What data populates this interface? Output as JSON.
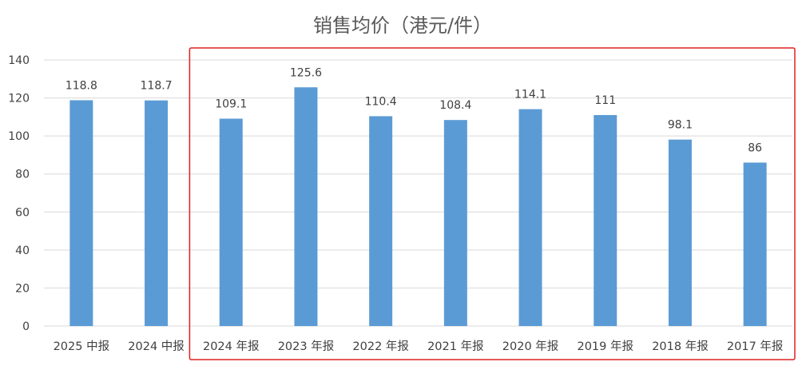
{
  "chart_data": {
    "type": "bar",
    "title": "销售均价（港元/件）",
    "categories": [
      "2025 中报",
      "2024 中报",
      "2024 年报",
      "2023 年报",
      "2022 年报",
      "2021 年报",
      "2020 年报",
      "2019 年报",
      "2018 年报",
      "2017 年报"
    ],
    "values": [
      118.8,
      118.7,
      109.1,
      125.6,
      110.4,
      108.4,
      114.1,
      111,
      98.1,
      86
    ],
    "data_labels": [
      "118.8",
      "118.7",
      "109.1",
      "125.6",
      "110.4",
      "108.4",
      "114.1",
      "111",
      "98.1",
      "86"
    ],
    "ylim": [
      0,
      140
    ],
    "yticks": [
      0,
      20,
      40,
      60,
      80,
      100,
      120,
      140
    ],
    "grid": true,
    "bar_color": "#5b9bd5",
    "grid_color": "#d9d9d9",
    "highlight": {
      "categories": [
        "2024 年报",
        "2017 年报"
      ],
      "color": "#e02020"
    }
  }
}
